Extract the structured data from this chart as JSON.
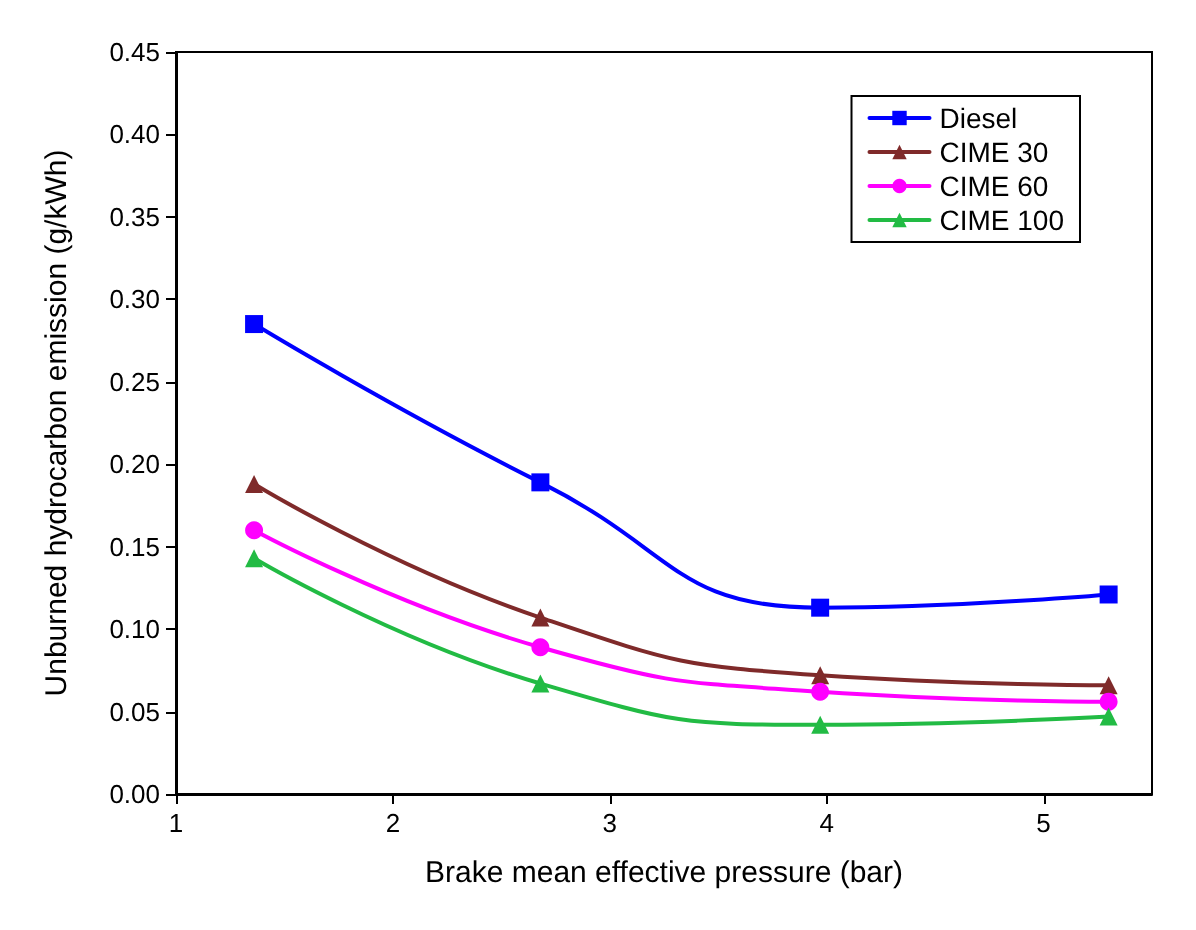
{
  "chart_data": {
    "type": "line",
    "xlabel": "Brake mean effective pressure (bar)",
    "ylabel": "Unburned hydrocarbon emission (g/kWh)",
    "x": [
      1.36,
      2.68,
      3.97,
      5.3
    ],
    "series": [
      {
        "name": "Diesel",
        "color": "#0000ff",
        "marker": "square",
        "values": [
          0.285,
          0.189,
          0.113,
          0.121
        ]
      },
      {
        "name": "CIME 30",
        "color": "#7f2a2a",
        "marker": "triangle",
        "values": [
          0.188,
          0.107,
          0.072,
          0.066
        ]
      },
      {
        "name": "CIME 60",
        "color": "#ff00ff",
        "marker": "circle",
        "values": [
          0.16,
          0.089,
          0.062,
          0.056
        ]
      },
      {
        "name": "CIME 100",
        "color": "#22bb44",
        "marker": "triangle",
        "values": [
          0.143,
          0.067,
          0.042,
          0.047
        ]
      }
    ],
    "xlim": [
      1,
      5.5
    ],
    "xticks": [
      1,
      2,
      3,
      4,
      5
    ],
    "ylim": [
      0,
      0.45
    ],
    "yticks": [
      {
        "value": 0,
        "label": "0.00"
      },
      {
        "value": 0.05,
        "label": "0.05"
      },
      {
        "value": 0.1,
        "label": "0.10"
      },
      {
        "value": 0.15,
        "label": "0.15"
      },
      {
        "value": 0.2,
        "label": "0.20"
      },
      {
        "value": 0.25,
        "label": "0.25"
      },
      {
        "value": 0.3,
        "label": "0.30"
      },
      {
        "value": 0.35,
        "label": "0.35"
      },
      {
        "value": 0.4,
        "label": "0.40"
      },
      {
        "value": 0.45,
        "label": "0.45"
      }
    ],
    "grid": false,
    "legend": "top right",
    "line_style": "solid"
  }
}
